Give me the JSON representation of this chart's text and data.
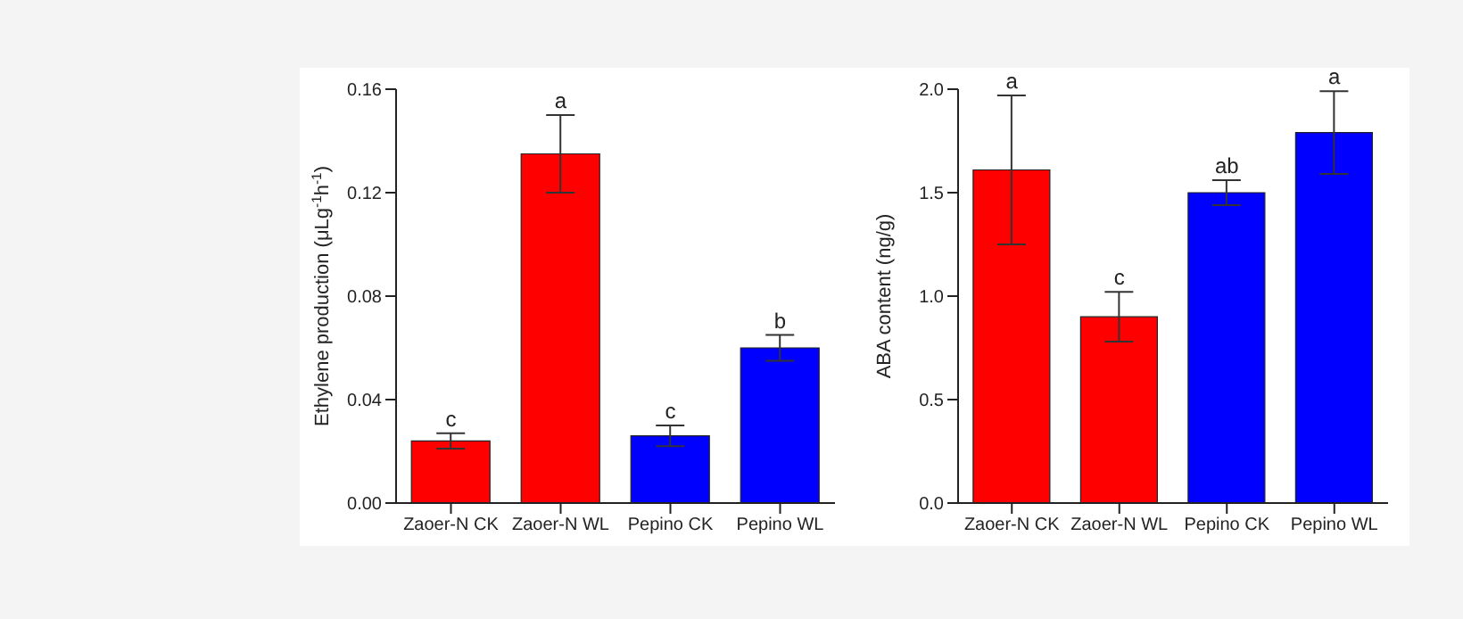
{
  "chart_data": [
    {
      "type": "bar",
      "ylabel": "Ethylene production (μLg$^{-1}$h$^{-1}$)",
      "categories": [
        "Zaoer-N CK",
        "Zaoer-N WL",
        "Pepino CK",
        "Pepino WL"
      ],
      "values": [
        0.024,
        0.135,
        0.026,
        0.06
      ],
      "errors": [
        0.003,
        0.015,
        0.004,
        0.005
      ],
      "colors": [
        "#ff0000",
        "#ff0000",
        "#0000ff",
        "#0000ff"
      ],
      "ylim": [
        0,
        0.16
      ],
      "yticks": [
        {
          "value": 0,
          "label": "0.00"
        },
        0.04,
        0.08,
        0.12,
        0.16
      ],
      "grid": false,
      "legend": false,
      "annotations": [
        {
          "text": "c",
          "x": "Zaoer-N CK",
          "y": 0.027
        },
        {
          "text": "a",
          "x": "Zaoer-N WL",
          "y": 0.15
        },
        {
          "text": "c",
          "x": "Pepino CK",
          "y": 0.03
        },
        {
          "text": "b",
          "x": "Pepino WL",
          "y": 0.065
        }
      ]
    },
    {
      "type": "bar",
      "ylabel": "ABA content (ng/g)",
      "categories": [
        "Zaoer-N CK",
        "Zaoer-N WL",
        "Pepino CK",
        "Pepino WL"
      ],
      "values": [
        1.61,
        0.9,
        1.5,
        1.79
      ],
      "errors": [
        0.36,
        0.12,
        0.06,
        0.2
      ],
      "colors": [
        "#ff0000",
        "#ff0000",
        "#0000ff",
        "#0000ff"
      ],
      "ylim": [
        0,
        2.0
      ],
      "yticks": [
        {
          "value": 0,
          "label": "0.0"
        },
        0.5,
        {
          "value": 1,
          "label": "1.0"
        },
        1.5,
        {
          "value": 2,
          "label": "2.0"
        }
      ],
      "grid": false,
      "legend": false,
      "annotations": [
        {
          "text": "a",
          "x": "Zaoer-N CK",
          "y": 1.97
        },
        {
          "text": "c",
          "x": "Zaoer-N WL",
          "y": 1.02
        },
        {
          "text": "ab",
          "x": "Pepino CK",
          "y": 1.56
        },
        {
          "text": "a",
          "x": "Pepino WL",
          "y": 1.99
        }
      ]
    }
  ]
}
